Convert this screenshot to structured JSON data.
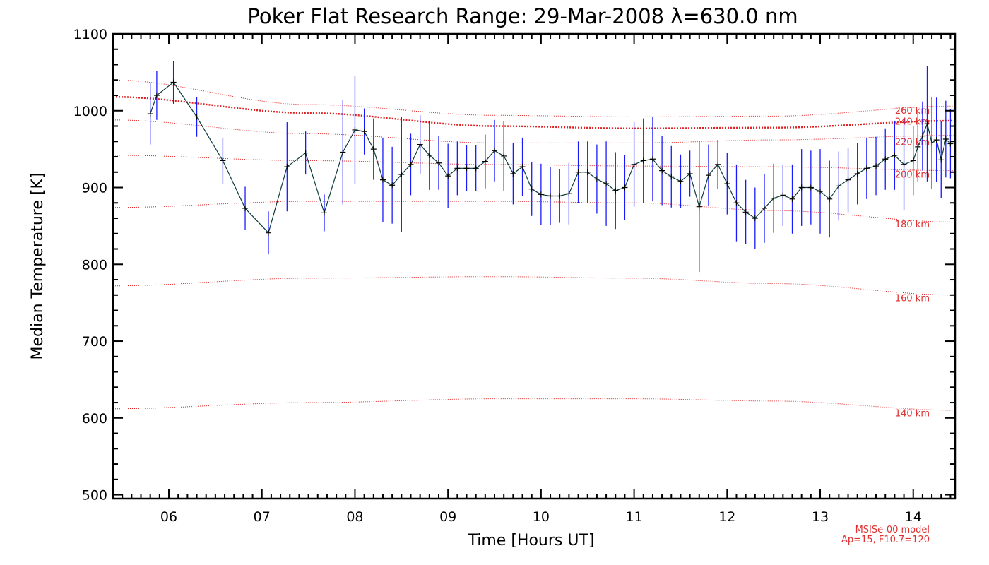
{
  "chart_data": {
    "type": "line",
    "title": "Poker Flat Research Range: 29-Mar-2008 λ=630.0 nm",
    "xlabel": "Time [Hours UT]",
    "ylabel": "Median Temperature [K]",
    "xlim": [
      5.4,
      14.45
    ],
    "ylim": [
      495,
      1100
    ],
    "x_ticks": [
      {
        "value": 6,
        "label": "06"
      },
      {
        "value": 7,
        "label": "07"
      },
      {
        "value": 8,
        "label": "08"
      },
      {
        "value": 9,
        "label": "09"
      },
      {
        "value": 10,
        "label": "10"
      },
      {
        "value": 11,
        "label": "11"
      },
      {
        "value": 12,
        "label": "12"
      },
      {
        "value": 13,
        "label": "13"
      },
      {
        "value": 14,
        "label": "14"
      }
    ],
    "y_ticks": [
      {
        "value": 500,
        "label": "500"
      },
      {
        "value": 600,
        "label": "600"
      },
      {
        "value": 700,
        "label": "700"
      },
      {
        "value": 800,
        "label": "800"
      },
      {
        "value": 900,
        "label": "900"
      },
      {
        "value": 1000,
        "label": "1000"
      },
      {
        "value": 1100,
        "label": "1100"
      }
    ],
    "grid": false,
    "series": [
      {
        "color": "#000000",
        "error_color": "#1a1aff",
        "points": [
          [
            5.8,
            996,
            40
          ],
          [
            5.87,
            1020,
            32
          ],
          [
            6.05,
            1037,
            28
          ],
          [
            6.3,
            992,
            26
          ],
          [
            6.58,
            935,
            30
          ],
          [
            6.82,
            873,
            28
          ],
          [
            7.07,
            841,
            28
          ],
          [
            7.27,
            927,
            58
          ],
          [
            7.47,
            945,
            28
          ],
          [
            7.67,
            867,
            24
          ],
          [
            7.87,
            946,
            68
          ],
          [
            8.0,
            975,
            70
          ],
          [
            8.1,
            973,
            30
          ],
          [
            8.2,
            950,
            40
          ],
          [
            8.3,
            910,
            55
          ],
          [
            8.4,
            903,
            50
          ],
          [
            8.5,
            917,
            75
          ],
          [
            8.6,
            930,
            40
          ],
          [
            8.7,
            956,
            38
          ],
          [
            8.8,
            942,
            45
          ],
          [
            8.9,
            932,
            35
          ],
          [
            9.0,
            915,
            42
          ],
          [
            9.1,
            925,
            35
          ],
          [
            9.2,
            925,
            30
          ],
          [
            9.3,
            925,
            30
          ],
          [
            9.4,
            934,
            35
          ],
          [
            9.5,
            948,
            40
          ],
          [
            9.6,
            941,
            45
          ],
          [
            9.7,
            918,
            40
          ],
          [
            9.8,
            927,
            38
          ],
          [
            9.9,
            898,
            35
          ],
          [
            10.0,
            891,
            40
          ],
          [
            10.1,
            889,
            38
          ],
          [
            10.2,
            889,
            35
          ],
          [
            10.3,
            892,
            40
          ],
          [
            10.4,
            920,
            40
          ],
          [
            10.5,
            920,
            40
          ],
          [
            10.6,
            911,
            45
          ],
          [
            10.7,
            905,
            55
          ],
          [
            10.8,
            896,
            50
          ],
          [
            10.9,
            900,
            42
          ],
          [
            11.0,
            930,
            55
          ],
          [
            11.1,
            935,
            55
          ],
          [
            11.2,
            937,
            55
          ],
          [
            11.3,
            922,
            45
          ],
          [
            11.4,
            914,
            40
          ],
          [
            11.5,
            908,
            35
          ],
          [
            11.6,
            918,
            30
          ],
          [
            11.7,
            875,
            85
          ],
          [
            11.8,
            916,
            40
          ],
          [
            11.9,
            930,
            32
          ],
          [
            12.0,
            905,
            40
          ],
          [
            12.1,
            880,
            50
          ],
          [
            12.2,
            868,
            42
          ],
          [
            12.3,
            860,
            40
          ],
          [
            12.4,
            873,
            45
          ],
          [
            12.5,
            886,
            45
          ],
          [
            12.6,
            890,
            40
          ],
          [
            12.7,
            885,
            45
          ],
          [
            12.8,
            900,
            50
          ],
          [
            12.9,
            900,
            48
          ],
          [
            13.0,
            895,
            55
          ],
          [
            13.1,
            885,
            50
          ],
          [
            13.2,
            902,
            45
          ],
          [
            13.3,
            910,
            42
          ],
          [
            13.4,
            918,
            40
          ],
          [
            13.5,
            925,
            40
          ],
          [
            13.6,
            928,
            38
          ],
          [
            13.7,
            937,
            40
          ],
          [
            13.8,
            942,
            45
          ],
          [
            13.9,
            930,
            60
          ],
          [
            14.0,
            935,
            45
          ],
          [
            14.05,
            953,
            45
          ],
          [
            14.1,
            967,
            45
          ],
          [
            14.15,
            983,
            75
          ],
          [
            14.2,
            958,
            60
          ],
          [
            14.25,
            962,
            55
          ],
          [
            14.3,
            936,
            50
          ],
          [
            14.35,
            963,
            50
          ],
          [
            14.4,
            957,
            45
          ]
        ]
      }
    ],
    "model_curves": [
      {
        "label": "260 km",
        "label_y": 996,
        "values": [
          [
            5.4,
            1040
          ],
          [
            7.5,
            1008
          ],
          [
            9.5,
            994
          ],
          [
            11.0,
            992
          ],
          [
            12.5,
            993
          ],
          [
            14.45,
            1006
          ]
        ]
      },
      {
        "label": "240 km",
        "label_y": 982,
        "values": [
          [
            5.4,
            1018
          ],
          [
            7.5,
            997
          ],
          [
            9.5,
            980
          ],
          [
            11.0,
            977
          ],
          [
            12.5,
            978
          ],
          [
            14.45,
            987
          ]
        ],
        "bold": true
      },
      {
        "label": "220 km",
        "label_y": 955,
        "values": [
          [
            5.4,
            988
          ],
          [
            7.5,
            970
          ],
          [
            9.5,
            958
          ],
          [
            11.0,
            958
          ],
          [
            12.5,
            962
          ],
          [
            14.45,
            968
          ]
        ]
      },
      {
        "label": "200 km",
        "label_y": 913,
        "values": [
          [
            5.4,
            942
          ],
          [
            7.5,
            935
          ],
          [
            9.5,
            930
          ],
          [
            11.0,
            928
          ],
          [
            12.5,
            927
          ],
          [
            14.45,
            922
          ]
        ]
      },
      {
        "label": "180 km",
        "label_y": 848,
        "values": [
          [
            5.4,
            874
          ],
          [
            7.5,
            882
          ],
          [
            9.5,
            882
          ],
          [
            11.0,
            880
          ],
          [
            12.5,
            870
          ],
          [
            14.45,
            855
          ]
        ]
      },
      {
        "label": "160 km",
        "label_y": 752,
        "values": [
          [
            5.4,
            772
          ],
          [
            7.5,
            782
          ],
          [
            9.5,
            784
          ],
          [
            11.0,
            782
          ],
          [
            12.5,
            775
          ],
          [
            14.45,
            760
          ]
        ]
      },
      {
        "label": "140 km",
        "label_y": 602,
        "values": [
          [
            5.4,
            612
          ],
          [
            7.5,
            620
          ],
          [
            9.5,
            625
          ],
          [
            11.0,
            625
          ],
          [
            12.5,
            622
          ],
          [
            14.45,
            610
          ]
        ]
      }
    ],
    "annotations": [
      "MSISe-00 model",
      "Ap=15, F10.7=120"
    ]
  }
}
